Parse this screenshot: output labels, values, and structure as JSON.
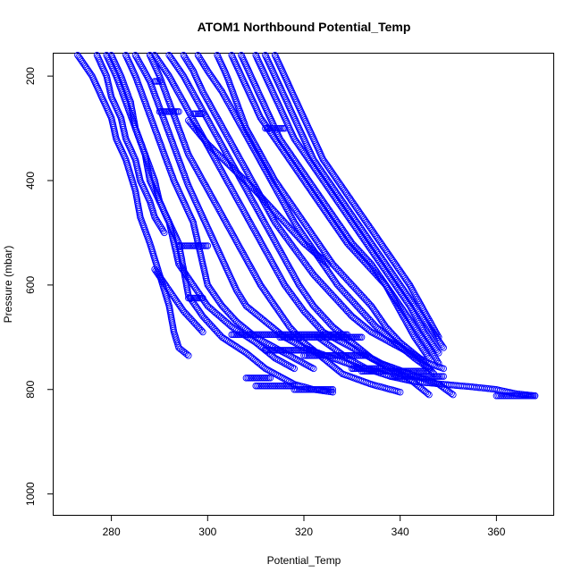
{
  "chart_data": {
    "type": "scatter",
    "title": "ATOM1 Northbound Potential_Temp",
    "xlabel": "Potential_Temp",
    "ylabel": "Pressure (mbar)",
    "xlim": [
      268,
      372
    ],
    "ylim": [
      1040,
      157
    ],
    "y_axis_reversed": true,
    "xticks": [
      280,
      300,
      320,
      340,
      360
    ],
    "yticks": [
      200,
      400,
      600,
      800,
      1000
    ],
    "marker": "open-circle",
    "color": "#0000ff",
    "grid": false,
    "legend": "none",
    "profiles": [
      {
        "x": [
          273,
          276,
          278,
          280,
          281,
          283,
          285,
          286,
          288,
          290,
          292,
          293,
          294,
          296
        ],
        "y": [
          160,
          200,
          240,
          280,
          320,
          360,
          420,
          470,
          520,
          580,
          640,
          690,
          720,
          735
        ]
      },
      {
        "x": [
          277,
          279,
          280,
          282,
          283,
          285,
          286,
          288,
          289,
          291
        ],
        "y": [
          160,
          200,
          240,
          280,
          320,
          360,
          400,
          440,
          470,
          500
        ]
      },
      {
        "x": [
          279,
          281,
          283,
          285,
          287,
          288,
          290,
          292,
          293,
          294,
          297,
          300,
          305,
          310,
          314,
          318
        ],
        "y": [
          160,
          200,
          250,
          300,
          350,
          400,
          440,
          480,
          520,
          560,
          600,
          640,
          680,
          710,
          740,
          760
        ]
      },
      {
        "x": [
          280,
          282,
          284,
          285,
          287,
          289,
          290,
          292,
          294,
          295,
          296,
          299,
          303,
          308,
          312,
          318,
          322,
          326
        ],
        "y": [
          160,
          200,
          250,
          300,
          350,
          400,
          440,
          480,
          520,
          570,
          620,
          660,
          700,
          730,
          760,
          790,
          800,
          805
        ]
      },
      {
        "x": [
          283,
          285,
          287,
          289,
          291,
          293,
          295,
          297,
          298,
          299,
          300,
          303,
          306,
          310,
          314,
          318,
          322
        ],
        "y": [
          160,
          200,
          250,
          300,
          350,
          400,
          440,
          480,
          520,
          560,
          600,
          640,
          670,
          700,
          720,
          740,
          760
        ]
      },
      {
        "x": [
          285,
          288,
          290,
          292,
          294,
          296,
          298,
          300,
          302,
          304,
          306,
          308,
          312,
          316,
          320,
          326,
          332
        ],
        "y": [
          160,
          210,
          260,
          310,
          360,
          410,
          450,
          490,
          530,
          570,
          610,
          640,
          670,
          700,
          720,
          740,
          760
        ]
      },
      {
        "x": [
          288,
          290,
          292,
          294,
          296,
          299,
          302,
          305,
          308,
          311,
          314,
          317,
          320,
          324,
          328,
          334,
          340
        ],
        "y": [
          160,
          200,
          250,
          300,
          350,
          400,
          450,
          500,
          550,
          600,
          640,
          680,
          710,
          740,
          770,
          790,
          805
        ]
      },
      {
        "x": [
          289,
          292,
          295,
          298,
          301,
          304,
          307,
          310,
          313,
          316,
          320,
          324,
          330,
          336,
          342,
          348,
          351
        ],
        "y": [
          160,
          200,
          250,
          300,
          350,
          400,
          450,
          500,
          550,
          600,
          650,
          690,
          720,
          750,
          770,
          790,
          810
        ]
      },
      {
        "x": [
          292,
          295,
          298,
          301,
          304,
          307,
          310,
          313,
          316,
          319,
          322,
          326,
          330,
          334,
          338,
          342,
          346
        ],
        "y": [
          160,
          200,
          250,
          300,
          350,
          400,
          450,
          500,
          550,
          600,
          640,
          680,
          710,
          740,
          760,
          780,
          810
        ]
      },
      {
        "x": [
          295,
          297,
          299,
          302,
          305,
          308,
          311,
          314,
          318,
          322,
          326,
          330,
          334,
          338,
          342,
          346,
          349
        ],
        "y": [
          160,
          190,
          230,
          280,
          330,
          380,
          430,
          480,
          530,
          580,
          620,
          660,
          690,
          710,
          730,
          750,
          760
        ]
      },
      {
        "x": [
          298,
          300,
          303,
          306,
          309,
          312,
          315,
          318,
          321,
          324,
          327,
          331,
          335,
          339,
          343,
          346
        ],
        "y": [
          160,
          190,
          230,
          280,
          330,
          380,
          430,
          480,
          520,
          560,
          600,
          640,
          680,
          710,
          740,
          760
        ]
      },
      {
        "x": [
          302,
          304,
          306,
          308,
          311,
          314,
          317,
          320,
          323,
          326,
          330,
          334,
          337,
          340,
          344,
          347
        ],
        "y": [
          160,
          200,
          250,
          300,
          350,
          400,
          440,
          480,
          520,
          560,
          600,
          640,
          680,
          710,
          740,
          770
        ]
      },
      {
        "x": [
          305,
          307,
          309,
          311,
          314,
          317,
          320,
          323,
          326,
          329,
          333,
          337,
          340,
          343,
          346,
          348
        ],
        "y": [
          160,
          200,
          240,
          280,
          320,
          360,
          400,
          440,
          480,
          520,
          560,
          600,
          640,
          680,
          720,
          750
        ]
      },
      {
        "x": [
          307,
          309,
          311,
          313,
          315,
          318,
          321,
          324,
          327,
          330,
          334,
          337,
          340,
          343,
          346
        ],
        "y": [
          160,
          200,
          240,
          280,
          320,
          360,
          400,
          440,
          480,
          520,
          560,
          600,
          650,
          700,
          740
        ]
      },
      {
        "x": [
          310,
          312,
          314,
          316,
          318,
          321,
          324,
          327,
          330,
          333,
          336,
          339,
          342,
          345,
          348
        ],
        "y": [
          160,
          200,
          240,
          280,
          320,
          360,
          400,
          440,
          480,
          520,
          560,
          600,
          640,
          690,
          730
        ]
      },
      {
        "x": [
          312,
          314,
          316,
          318,
          320,
          322,
          325,
          328,
          331,
          334,
          337,
          340,
          343,
          346,
          349
        ],
        "y": [
          160,
          200,
          240,
          280,
          320,
          360,
          400,
          440,
          480,
          520,
          560,
          600,
          640,
          680,
          720
        ]
      },
      {
        "x": [
          314,
          316,
          318,
          320,
          322,
          324,
          327,
          330,
          333,
          336,
          339,
          342,
          345,
          348
        ],
        "y": [
          160,
          200,
          240,
          280,
          320,
          360,
          400,
          440,
          480,
          520,
          560,
          600,
          650,
          700
        ]
      },
      {
        "x": [
          296,
          300,
          305,
          310,
          315,
          320,
          325
        ],
        "y": [
          285,
          330,
          375,
          420,
          470,
          520,
          560
        ]
      },
      {
        "x": [
          323,
          326,
          329,
          333,
          338,
          343,
          349,
          355,
          360,
          364,
          368
        ],
        "y": [
          700,
          720,
          740,
          760,
          775,
          785,
          790,
          795,
          800,
          808,
          812
        ]
      },
      {
        "x": [
          289,
          292,
          295,
          299
        ],
        "y": [
          570,
          610,
          650,
          690
        ]
      }
    ],
    "levels": [
      {
        "p": 210,
        "x": [
          289,
          290
        ]
      },
      {
        "p": 268,
        "x": [
          290,
          294
        ]
      },
      {
        "p": 272,
        "x": [
          297,
          299
        ]
      },
      {
        "p": 300,
        "x": [
          312,
          316
        ]
      },
      {
        "p": 525,
        "x": [
          294,
          300
        ]
      },
      {
        "p": 625,
        "x": [
          296,
          299
        ]
      },
      {
        "p": 695,
        "x": [
          305,
          329
        ]
      },
      {
        "p": 700,
        "x": [
          315,
          332
        ]
      },
      {
        "p": 725,
        "x": [
          312,
          322
        ]
      },
      {
        "p": 735,
        "x": [
          320,
          333
        ]
      },
      {
        "p": 760,
        "x": [
          330,
          336
        ]
      },
      {
        "p": 765,
        "x": [
          332,
          346
        ]
      },
      {
        "p": 775,
        "x": [
          338,
          349
        ]
      },
      {
        "p": 778,
        "x": [
          308,
          313
        ]
      },
      {
        "p": 793,
        "x": [
          310,
          318
        ]
      },
      {
        "p": 800,
        "x": [
          318,
          326
        ]
      },
      {
        "p": 812,
        "x": [
          360,
          368
        ]
      }
    ]
  }
}
